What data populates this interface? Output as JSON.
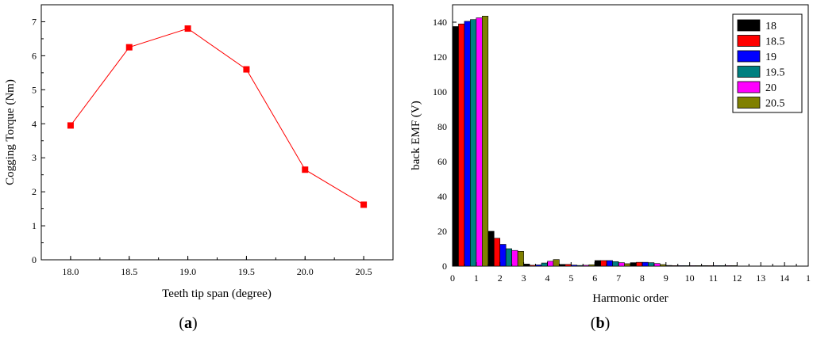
{
  "chart_data": [
    {
      "type": "line",
      "panel_label": "a",
      "xlabel": "Teeth tip span (degree)",
      "ylabel": "Cogging Torque (Nm)",
      "x": [
        18.0,
        18.5,
        19.0,
        19.5,
        20.0,
        20.5
      ],
      "y": [
        3.95,
        6.25,
        6.8,
        5.6,
        2.65,
        1.62
      ],
      "xlim": [
        17.75,
        20.75
      ],
      "ylim": [
        0,
        7.5
      ],
      "xticks": [
        "18.0",
        "18.5",
        "19.0",
        "19.5",
        "20.0",
        "20.5"
      ],
      "yticks": [
        "0",
        "1",
        "2",
        "3",
        "4",
        "5",
        "6",
        "7"
      ],
      "color": "#ff0000",
      "marker": "square"
    },
    {
      "type": "bar",
      "panel_label": "b",
      "xlabel": "Harmonic order",
      "ylabel": "back EMF (V)",
      "xlim": [
        0,
        15
      ],
      "ylim": [
        0,
        150
      ],
      "xticks": [
        "0",
        "1",
        "2",
        "3",
        "4",
        "5",
        "6",
        "7",
        "8",
        "9",
        "10",
        "11",
        "12",
        "13",
        "14",
        "1"
      ],
      "yticks": [
        "0",
        "20",
        "40",
        "60",
        "80",
        "100",
        "120",
        "140"
      ],
      "categories": [
        1,
        3,
        5,
        7,
        9,
        11,
        13,
        15
      ],
      "series": [
        {
          "name": "18",
          "color": "#000000",
          "values": [
            137.5,
            20,
            1.2,
            1.0,
            3.2,
            2.0,
            0.4,
            0.3
          ]
        },
        {
          "name": "18.5",
          "color": "#ff0000",
          "values": [
            139,
            16,
            0.5,
            1.0,
            3.2,
            2.2,
            0.3,
            0.3
          ]
        },
        {
          "name": "19",
          "color": "#0000ff",
          "values": [
            140.5,
            12.5,
            0.7,
            0.6,
            3.2,
            2.2,
            0.3,
            0.3
          ]
        },
        {
          "name": "19.5",
          "color": "#008080",
          "values": [
            141.5,
            10,
            1.8,
            0.4,
            2.6,
            2.0,
            0.3,
            0.3
          ]
        },
        {
          "name": "20",
          "color": "#ff00ff",
          "values": [
            142.5,
            9,
            2.8,
            0.5,
            2.0,
            1.5,
            0.3,
            0.3
          ]
        },
        {
          "name": "20.5",
          "color": "#808000",
          "values": [
            143.5,
            8.5,
            3.8,
            0.8,
            1.4,
            0.9,
            0.3,
            0.3
          ]
        }
      ]
    }
  ]
}
